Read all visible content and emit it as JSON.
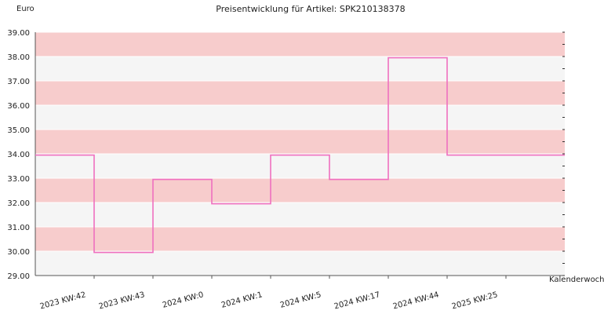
{
  "chart_data": {
    "type": "line",
    "title": "Preisentwicklung für Artikel: SPK210138378",
    "ylabel": "Euro",
    "xlabel": "Kalenderwoche",
    "ylim": [
      29.0,
      39.0
    ],
    "yticks": [
      "29.00",
      "30.00",
      "31.00",
      "32.00",
      "33.00",
      "34.00",
      "35.00",
      "36.00",
      "37.00",
      "38.00",
      "39.00"
    ],
    "step": true,
    "categories": [
      "2023 KW:42",
      "2023 KW:43",
      "2024 KW:0",
      "2024 KW:1",
      "2024 KW:5",
      "2024 KW:17",
      "2024 KW:44",
      "2025 KW:25"
    ],
    "series": [
      {
        "values": [
          33.95,
          29.95,
          32.95,
          31.95,
          33.95,
          32.95,
          37.95,
          33.95
        ]
      }
    ],
    "grid": true,
    "colors": {
      "band_a": "#f7cccc",
      "band_b": "#f5f5f5",
      "line": "#ef6fbf",
      "axis": "#555555"
    }
  }
}
